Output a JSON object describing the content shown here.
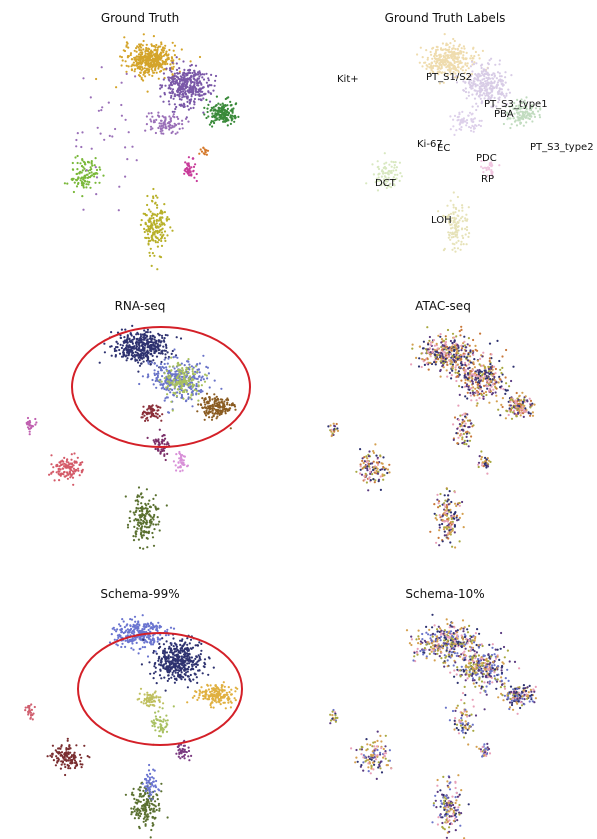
{
  "chart_data": [
    {
      "type": "scatter",
      "title": "Ground Truth",
      "legend": false,
      "grid": false,
      "clusters": [
        {
          "cx": -0.15,
          "cy": 0.78,
          "sx": 0.13,
          "sy": 0.07,
          "n": 420,
          "color": "#d4a42a"
        },
        {
          "cx": 0.22,
          "cy": 0.55,
          "sx": 0.11,
          "sy": 0.09,
          "n": 380,
          "color": "#7a58a8"
        },
        {
          "cx": 0.58,
          "cy": 0.3,
          "sx": 0.08,
          "sy": 0.05,
          "n": 170,
          "color": "#3a8a3a"
        },
        {
          "cx": -0.82,
          "cy": -0.25,
          "sx": 0.07,
          "sy": 0.07,
          "n": 110,
          "color": "#7ab83a"
        },
        {
          "cx": -0.1,
          "cy": -0.72,
          "sx": 0.06,
          "sy": 0.12,
          "n": 170,
          "color": "#b8b02a"
        },
        {
          "cx": 0.0,
          "cy": 0.22,
          "sx": 0.09,
          "sy": 0.05,
          "n": 90,
          "color": "#9a70b8"
        },
        {
          "cx": 0.25,
          "cy": -0.2,
          "sx": 0.04,
          "sy": 0.05,
          "n": 45,
          "color": "#c83c9a"
        },
        {
          "cx": 0.4,
          "cy": -0.05,
          "sx": 0.02,
          "sy": 0.02,
          "n": 14,
          "color": "#d4782a"
        },
        {
          "cx": -0.6,
          "cy": 0.05,
          "sx": 0.25,
          "sy": 0.3,
          "n": 40,
          "color": "#9a70b8"
        }
      ]
    },
    {
      "type": "scatter",
      "title": "Ground Truth Labels",
      "legend": false,
      "grid": false,
      "faded": true,
      "labels": [
        "Kit+",
        "PT_S1/S2",
        "PT_S3_type1",
        "PBA",
        "Ki-67",
        "EC",
        "PT_S3_type2",
        "PDC",
        "RP",
        "DCT",
        "LOH"
      ],
      "clusters": [
        {
          "cx": -0.15,
          "cy": 0.78,
          "sx": 0.13,
          "sy": 0.07,
          "n": 300,
          "color": "#efdcae"
        },
        {
          "cx": 0.22,
          "cy": 0.55,
          "sx": 0.11,
          "sy": 0.09,
          "n": 260,
          "color": "#d8cce6"
        },
        {
          "cx": 0.58,
          "cy": 0.3,
          "sx": 0.08,
          "sy": 0.05,
          "n": 120,
          "color": "#c2dcc0"
        },
        {
          "cx": -0.82,
          "cy": -0.25,
          "sx": 0.07,
          "sy": 0.07,
          "n": 80,
          "color": "#d8e8c0"
        },
        {
          "cx": -0.1,
          "cy": -0.72,
          "sx": 0.06,
          "sy": 0.12,
          "n": 120,
          "color": "#e6e2b8"
        },
        {
          "cx": 0.0,
          "cy": 0.22,
          "sx": 0.09,
          "sy": 0.05,
          "n": 60,
          "color": "#ddd0ea"
        },
        {
          "cx": 0.25,
          "cy": -0.2,
          "sx": 0.04,
          "sy": 0.05,
          "n": 30,
          "color": "#f0c6e0"
        }
      ]
    },
    {
      "type": "scatter",
      "title": "RNA-seq",
      "legend": false,
      "grid": false,
      "annotation": "ellipse",
      "clusters": [
        {
          "cx": -0.15,
          "cy": 0.78,
          "sx": 0.13,
          "sy": 0.07,
          "n": 380,
          "color": "#2e3270"
        },
        {
          "cx": 0.22,
          "cy": 0.5,
          "sx": 0.12,
          "sy": 0.09,
          "n": 300,
          "color": "#6a74c8"
        },
        {
          "cx": 0.25,
          "cy": 0.5,
          "sx": 0.1,
          "sy": 0.08,
          "n": 150,
          "color": "#a8c060"
        },
        {
          "cx": 0.58,
          "cy": 0.25,
          "sx": 0.08,
          "sy": 0.05,
          "n": 170,
          "color": "#8a5c22"
        },
        {
          "cx": -0.05,
          "cy": 0.2,
          "sx": 0.05,
          "sy": 0.03,
          "n": 60,
          "color": "#8a2e38"
        },
        {
          "cx": -0.85,
          "cy": -0.3,
          "sx": 0.07,
          "sy": 0.06,
          "n": 120,
          "color": "#d45a68"
        },
        {
          "cx": -0.1,
          "cy": -0.75,
          "sx": 0.07,
          "sy": 0.1,
          "n": 170,
          "color": "#5a7030"
        },
        {
          "cx": 0.05,
          "cy": -0.1,
          "sx": 0.04,
          "sy": 0.06,
          "n": 50,
          "color": "#7a2e68"
        },
        {
          "cx": 0.25,
          "cy": -0.25,
          "sx": 0.03,
          "sy": 0.04,
          "n": 40,
          "color": "#d890d8"
        },
        {
          "cx": -1.2,
          "cy": 0.1,
          "sx": 0.02,
          "sy": 0.03,
          "n": 25,
          "color": "#c060b0"
        }
      ]
    },
    {
      "type": "scatter",
      "title": "ATAC-seq",
      "legend": false,
      "grid": false,
      "mixed": true,
      "palette": [
        "#d4a050",
        "#e8a0b8",
        "#2e3270",
        "#a8a840",
        "#5a3a80",
        "#c8783a"
      ],
      "clusters": [
        {
          "cx": -0.1,
          "cy": 0.72,
          "sx": 0.15,
          "sy": 0.08,
          "n": 360
        },
        {
          "cx": 0.22,
          "cy": 0.5,
          "sx": 0.12,
          "sy": 0.09,
          "n": 300
        },
        {
          "cx": 0.58,
          "cy": 0.25,
          "sx": 0.08,
          "sy": 0.05,
          "n": 140
        },
        {
          "cx": -0.82,
          "cy": -0.3,
          "sx": 0.07,
          "sy": 0.07,
          "n": 110
        },
        {
          "cx": -0.1,
          "cy": -0.75,
          "sx": 0.06,
          "sy": 0.11,
          "n": 150
        },
        {
          "cx": 0.05,
          "cy": 0.05,
          "sx": 0.05,
          "sy": 0.08,
          "n": 70
        },
        {
          "cx": 0.25,
          "cy": -0.25,
          "sx": 0.03,
          "sy": 0.04,
          "n": 35
        },
        {
          "cx": -1.2,
          "cy": 0.05,
          "sx": 0.02,
          "sy": 0.03,
          "n": 20
        }
      ]
    },
    {
      "type": "scatter",
      "title": "Schema-99%",
      "legend": false,
      "grid": false,
      "annotation": "ellipse",
      "clusters": [
        {
          "cx": -0.15,
          "cy": 0.8,
          "sx": 0.12,
          "sy": 0.06,
          "n": 260,
          "color": "#6a74d0"
        },
        {
          "cx": 0.22,
          "cy": 0.55,
          "sx": 0.12,
          "sy": 0.09,
          "n": 420,
          "color": "#2e3270"
        },
        {
          "cx": 0.58,
          "cy": 0.25,
          "sx": 0.08,
          "sy": 0.05,
          "n": 170,
          "color": "#e0b040"
        },
        {
          "cx": -0.05,
          "cy": 0.2,
          "sx": 0.05,
          "sy": 0.03,
          "n": 60,
          "color": "#c0c060"
        },
        {
          "cx": -0.85,
          "cy": -0.3,
          "sx": 0.07,
          "sy": 0.06,
          "n": 120,
          "color": "#7a2e30"
        },
        {
          "cx": -0.1,
          "cy": -0.75,
          "sx": 0.07,
          "sy": 0.1,
          "n": 160,
          "color": "#5a7030"
        },
        {
          "cx": -0.05,
          "cy": -0.55,
          "sx": 0.04,
          "sy": 0.06,
          "n": 50,
          "color": "#6a74d0"
        },
        {
          "cx": 0.05,
          "cy": 0.0,
          "sx": 0.04,
          "sy": 0.06,
          "n": 50,
          "color": "#a8c060"
        },
        {
          "cx": 0.25,
          "cy": -0.25,
          "sx": 0.03,
          "sy": 0.04,
          "n": 40,
          "color": "#7a3a80"
        },
        {
          "cx": -1.2,
          "cy": 0.1,
          "sx": 0.02,
          "sy": 0.03,
          "n": 25,
          "color": "#d06070"
        }
      ]
    },
    {
      "type": "scatter",
      "title": "Schema-10%",
      "legend": false,
      "grid": false,
      "mixed": true,
      "palette": [
        "#d4a050",
        "#e8a0b8",
        "#2e3270",
        "#a8a840",
        "#5a3a80",
        "#6a74c8"
      ],
      "clusters": [
        {
          "cx": -0.1,
          "cy": 0.72,
          "sx": 0.15,
          "sy": 0.08,
          "n": 360
        },
        {
          "cx": 0.22,
          "cy": 0.5,
          "sx": 0.12,
          "sy": 0.09,
          "n": 300
        },
        {
          "cx": 0.58,
          "cy": 0.25,
          "sx": 0.08,
          "sy": 0.05,
          "n": 140
        },
        {
          "cx": -0.82,
          "cy": -0.3,
          "sx": 0.07,
          "sy": 0.07,
          "n": 110
        },
        {
          "cx": -0.1,
          "cy": -0.75,
          "sx": 0.06,
          "sy": 0.11,
          "n": 150
        },
        {
          "cx": 0.05,
          "cy": 0.05,
          "sx": 0.05,
          "sy": 0.08,
          "n": 70
        },
        {
          "cx": 0.25,
          "cy": -0.25,
          "sx": 0.03,
          "sy": 0.04,
          "n": 35
        },
        {
          "cx": -1.2,
          "cy": 0.05,
          "sx": 0.02,
          "sy": 0.03,
          "n": 20
        }
      ]
    }
  ]
}
